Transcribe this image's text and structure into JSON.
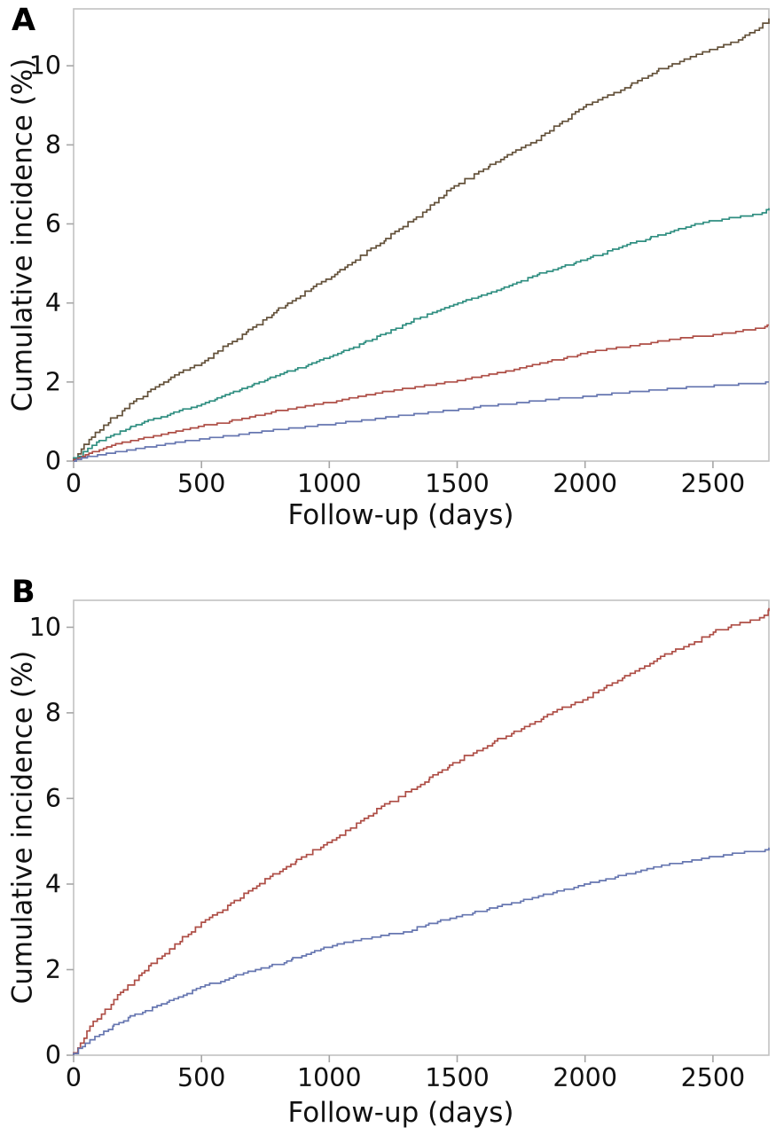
{
  "figure": {
    "background": "#ffffff",
    "frame_color": "#c2c2c2",
    "tick_mark_color": "#a6a6a6",
    "text_color": "#111111"
  },
  "chart_data": [
    {
      "panel_label": "A",
      "type": "line",
      "subtype": "step-cumulative-incidence",
      "title": "",
      "xlabel": "Follow-up (days)",
      "ylabel": "Cumulative incidence (%)",
      "xlim": [
        0,
        2719
      ],
      "ylim": [
        0,
        11.44
      ],
      "x_ticks": [
        0,
        500,
        1000,
        1500,
        2000,
        2500
      ],
      "y_ticks": [
        0,
        2,
        4,
        6,
        8,
        10
      ],
      "grid": false,
      "legend": "none",
      "series": [
        {
          "name": "curve-brown",
          "color": "#63513a",
          "x": [
            0,
            30,
            60,
            100,
            150,
            200,
            250,
            300,
            350,
            400,
            450,
            500,
            600,
            700,
            800,
            900,
            1000,
            1100,
            1200,
            1300,
            1400,
            1500,
            1600,
            1700,
            1800,
            1900,
            2000,
            2100,
            2200,
            2300,
            2400,
            2500,
            2600,
            2680,
            2719
          ],
          "y": [
            0.05,
            0.3,
            0.55,
            0.8,
            1.1,
            1.35,
            1.6,
            1.8,
            2.0,
            2.2,
            2.35,
            2.5,
            2.95,
            3.4,
            3.85,
            4.25,
            4.65,
            5.1,
            5.55,
            6.0,
            6.5,
            7.0,
            7.4,
            7.75,
            8.1,
            8.55,
            9.0,
            9.3,
            9.6,
            9.95,
            10.2,
            10.45,
            10.7,
            10.95,
            11.2
          ]
        },
        {
          "name": "curve-teal",
          "color": "#2f8e80",
          "x": [
            0,
            30,
            60,
            100,
            150,
            200,
            300,
            400,
            500,
            600,
            700,
            800,
            900,
            1000,
            1100,
            1200,
            1300,
            1400,
            1500,
            1600,
            1700,
            1800,
            1900,
            2000,
            2100,
            2200,
            2300,
            2400,
            2500,
            2600,
            2700,
            2719
          ],
          "y": [
            0.05,
            0.2,
            0.35,
            0.5,
            0.65,
            0.8,
            1.05,
            1.25,
            1.45,
            1.7,
            1.95,
            2.2,
            2.4,
            2.65,
            2.9,
            3.2,
            3.5,
            3.75,
            4.0,
            4.2,
            4.45,
            4.7,
            4.9,
            5.1,
            5.35,
            5.55,
            5.75,
            5.95,
            6.1,
            6.2,
            6.3,
            6.4
          ]
        },
        {
          "name": "curve-red",
          "color": "#ae4e46",
          "x": [
            0,
            40,
            100,
            200,
            300,
            400,
            500,
            600,
            700,
            800,
            900,
            1000,
            1100,
            1200,
            1300,
            1400,
            1500,
            1600,
            1700,
            1800,
            1900,
            2000,
            2100,
            2200,
            2300,
            2400,
            2500,
            2600,
            2700,
            2719
          ],
          "y": [
            0.03,
            0.15,
            0.3,
            0.5,
            0.63,
            0.77,
            0.9,
            1.0,
            1.15,
            1.28,
            1.4,
            1.5,
            1.63,
            1.75,
            1.85,
            1.95,
            2.05,
            2.17,
            2.3,
            2.45,
            2.6,
            2.75,
            2.85,
            2.95,
            3.05,
            3.15,
            3.2,
            3.3,
            3.4,
            3.45
          ]
        },
        {
          "name": "curve-blue",
          "color": "#6676b0",
          "x": [
            0,
            40,
            100,
            200,
            300,
            400,
            500,
            600,
            700,
            800,
            900,
            1000,
            1100,
            1200,
            1300,
            1400,
            1500,
            1600,
            1700,
            1800,
            1900,
            2000,
            2100,
            2200,
            2300,
            2400,
            2500,
            2600,
            2700,
            2719
          ],
          "y": [
            0.02,
            0.1,
            0.17,
            0.28,
            0.38,
            0.48,
            0.57,
            0.65,
            0.73,
            0.82,
            0.88,
            0.95,
            1.02,
            1.1,
            1.18,
            1.25,
            1.32,
            1.4,
            1.47,
            1.53,
            1.6,
            1.65,
            1.72,
            1.78,
            1.83,
            1.88,
            1.92,
            1.96,
            2.0,
            2.0
          ]
        }
      ]
    },
    {
      "panel_label": "B",
      "type": "line",
      "subtype": "step-cumulative-incidence",
      "title": "",
      "xlabel": "Follow-up (days)",
      "ylabel": "Cumulative incidence (%)",
      "xlim": [
        0,
        2719
      ],
      "ylim": [
        0,
        10.63
      ],
      "x_ticks": [
        0,
        500,
        1000,
        1500,
        2000,
        2500
      ],
      "y_ticks": [
        0,
        2,
        4,
        6,
        8,
        10
      ],
      "grid": false,
      "legend": "none",
      "series": [
        {
          "name": "curve-red",
          "color": "#ae4e46",
          "x": [
            0,
            30,
            60,
            100,
            150,
            200,
            300,
            400,
            500,
            600,
            700,
            800,
            900,
            1000,
            1100,
            1200,
            1300,
            1400,
            1500,
            1600,
            1700,
            1800,
            1900,
            2000,
            2100,
            2200,
            2300,
            2400,
            2500,
            2600,
            2700,
            2719
          ],
          "y": [
            0.05,
            0.35,
            0.6,
            0.9,
            1.25,
            1.55,
            2.1,
            2.6,
            3.1,
            3.5,
            3.9,
            4.3,
            4.65,
            5.0,
            5.4,
            5.8,
            6.15,
            6.5,
            6.9,
            7.2,
            7.5,
            7.8,
            8.1,
            8.35,
            8.7,
            9.0,
            9.35,
            9.6,
            9.9,
            10.1,
            10.25,
            10.45
          ]
        },
        {
          "name": "curve-blue",
          "color": "#6676b0",
          "x": [
            0,
            40,
            100,
            200,
            300,
            400,
            500,
            600,
            700,
            800,
            900,
            1000,
            1100,
            1200,
            1300,
            1400,
            1500,
            1600,
            1700,
            1800,
            1900,
            2000,
            2100,
            2200,
            2300,
            2400,
            2500,
            2600,
            2700,
            2719
          ],
          "y": [
            0.02,
            0.25,
            0.5,
            0.85,
            1.1,
            1.35,
            1.6,
            1.8,
            2.0,
            2.15,
            2.35,
            2.55,
            2.7,
            2.8,
            2.9,
            3.1,
            3.25,
            3.4,
            3.55,
            3.7,
            3.85,
            4.0,
            4.15,
            4.3,
            4.45,
            4.55,
            4.65,
            4.75,
            4.8,
            4.85
          ]
        }
      ]
    }
  ]
}
